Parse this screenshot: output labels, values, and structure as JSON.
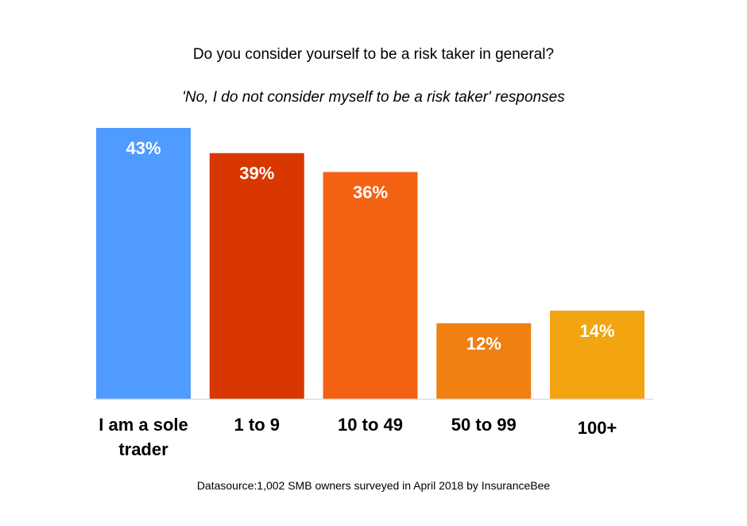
{
  "chart_data": {
    "type": "bar",
    "title": "Do you consider yourself to be a risk taker in general?",
    "subtitle": "'No, I do not consider myself to be a risk taker' responses",
    "categories": [
      "I am a sole trader",
      "1 to 9",
      "10 to 49",
      "50 to 99",
      "100+"
    ],
    "category_lines": [
      [
        "I am a sole",
        "trader"
      ],
      [
        "1 to 9"
      ],
      [
        "10 to 49"
      ],
      [
        "50 to 99"
      ],
      [
        "100+"
      ]
    ],
    "values": [
      43,
      39,
      36,
      12,
      14
    ],
    "data_labels": [
      "43%",
      "39%",
      "36%",
      "12%",
      "14%"
    ],
    "colors": [
      "#4f9bff",
      "#d83700",
      "#f26212",
      "#f08012",
      "#f2a411"
    ],
    "unit": "%",
    "ylim": [
      0,
      43
    ],
    "grid": false,
    "legend": "none",
    "source": "Datasource:1,002 SMB owners surveyed in April 2018 by InsuranceBee"
  }
}
